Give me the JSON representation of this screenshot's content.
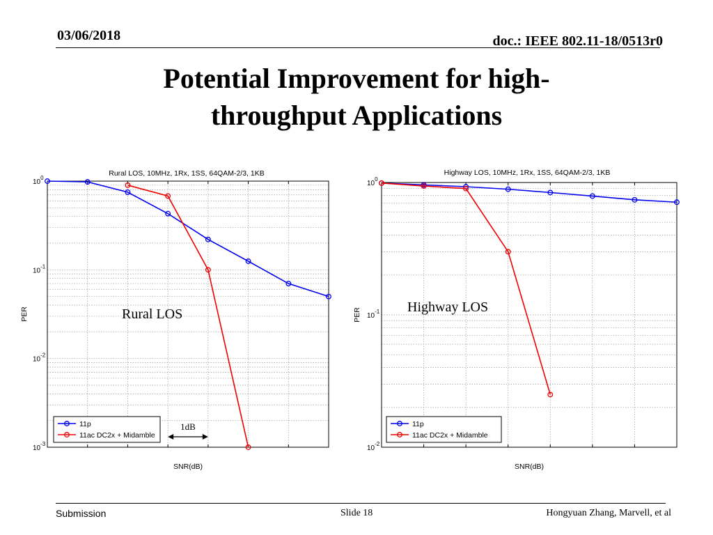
{
  "header": {
    "date": "03/06/2018",
    "doc": "doc.: IEEE 802.11-18/0513r0"
  },
  "title": {
    "line1": "Potential Improvement for high-",
    "line2": "throughput Applications"
  },
  "footer": {
    "left": "Submission",
    "center": "Slide 18",
    "right": "Hongyuan Zhang, Marvell, et al"
  },
  "colors": {
    "series_11p": "#0000ee",
    "series_11ac": "#ee0000",
    "grid": "#999999"
  },
  "chart_data": [
    {
      "type": "line",
      "title": "Rural LOS, 10MHz, 1Rx, 1SS, 64QAM-2/3, 1KB",
      "xlabel": "SNR(dB)",
      "ylabel": "PER",
      "yscale": "log",
      "ylim": [
        0.001,
        1
      ],
      "xlim": [
        0,
        7
      ],
      "x_tick_labels_visible": false,
      "ytick_bases": [
        "10",
        "10",
        "10",
        "10"
      ],
      "ytick_exps": [
        "0",
        "-1",
        "-2",
        "-3"
      ],
      "grid": true,
      "legend_position": "bottom-left",
      "annotation": "Rural LOS",
      "dimension_label": "1dB",
      "series": [
        {
          "name": "11p",
          "x": [
            0,
            1,
            2,
            3,
            4,
            5,
            6,
            7
          ],
          "y": [
            1.0,
            0.98,
            0.75,
            0.43,
            0.22,
            0.125,
            0.07,
            0.05
          ]
        },
        {
          "name": "11ac DC2x + Midamble",
          "x": [
            2,
            3,
            4,
            5
          ],
          "y": [
            0.9,
            0.68,
            0.1,
            0.001
          ]
        }
      ]
    },
    {
      "type": "line",
      "title": "Highway LOS, 10MHz, 1Rx, 1SS, 64QAM-2/3, 1KB",
      "xlabel": "SNR(dB)",
      "ylabel": "PER",
      "yscale": "log",
      "ylim": [
        0.01,
        1
      ],
      "xlim": [
        0,
        7
      ],
      "x_tick_labels_visible": false,
      "ytick_bases": [
        "10",
        "10",
        "10"
      ],
      "ytick_exps": [
        "0",
        "-1",
        "-2"
      ],
      "grid": true,
      "legend_position": "bottom-left",
      "annotation": "Highway LOS",
      "series": [
        {
          "name": "11p",
          "x": [
            0,
            1,
            2,
            3,
            4,
            5,
            6,
            7
          ],
          "y": [
            0.99,
            0.96,
            0.93,
            0.89,
            0.84,
            0.79,
            0.74,
            0.71
          ]
        },
        {
          "name": "11ac DC2x + Midamble",
          "x": [
            0,
            1,
            2,
            3,
            4
          ],
          "y": [
            0.99,
            0.94,
            0.9,
            0.3,
            0.025
          ]
        }
      ]
    }
  ]
}
